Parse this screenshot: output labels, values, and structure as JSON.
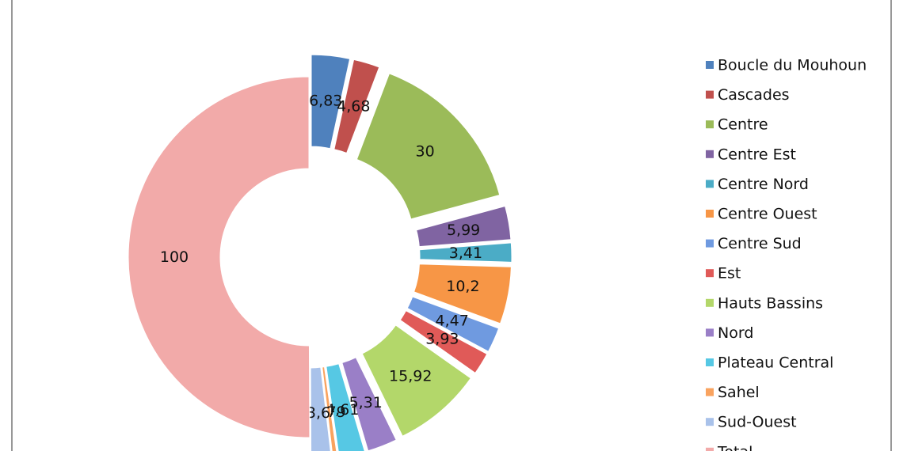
{
  "chart_data": {
    "type": "donut",
    "categories": [
      "Boucle du Mouhoun",
      "Cascades",
      "Centre",
      "Centre Est",
      "Centre Nord",
      "Centre Ouest",
      "Centre Sud",
      "Est",
      "Hauts Bassins",
      "Nord",
      "Plateau Central",
      "Sahel",
      "Sud-Ouest",
      "Total"
    ],
    "values": [
      6.83,
      4.68,
      30,
      5.99,
      3.41,
      10.2,
      4.47,
      3.93,
      15.92,
      5.31,
      4.61,
      0.79,
      3.6,
      100
    ],
    "value_labels": [
      "6,83",
      "4,68",
      "30",
      "5,99",
      "3,41",
      "10,2",
      "4,47",
      "3,93",
      "15,92",
      "5,31",
      "4,61",
      "0,79",
      "3,6",
      "100"
    ],
    "colors": [
      "#4f81bd",
      "#c0504d",
      "#9bbb59",
      "#8064a2",
      "#4bacc6",
      "#f79646",
      "#6f9ae0",
      "#e05a58",
      "#b3d76a",
      "#9a7fc7",
      "#56c8e4",
      "#f9a35f",
      "#a9c2ea",
      "#f2aaa9"
    ],
    "legend": "right"
  }
}
